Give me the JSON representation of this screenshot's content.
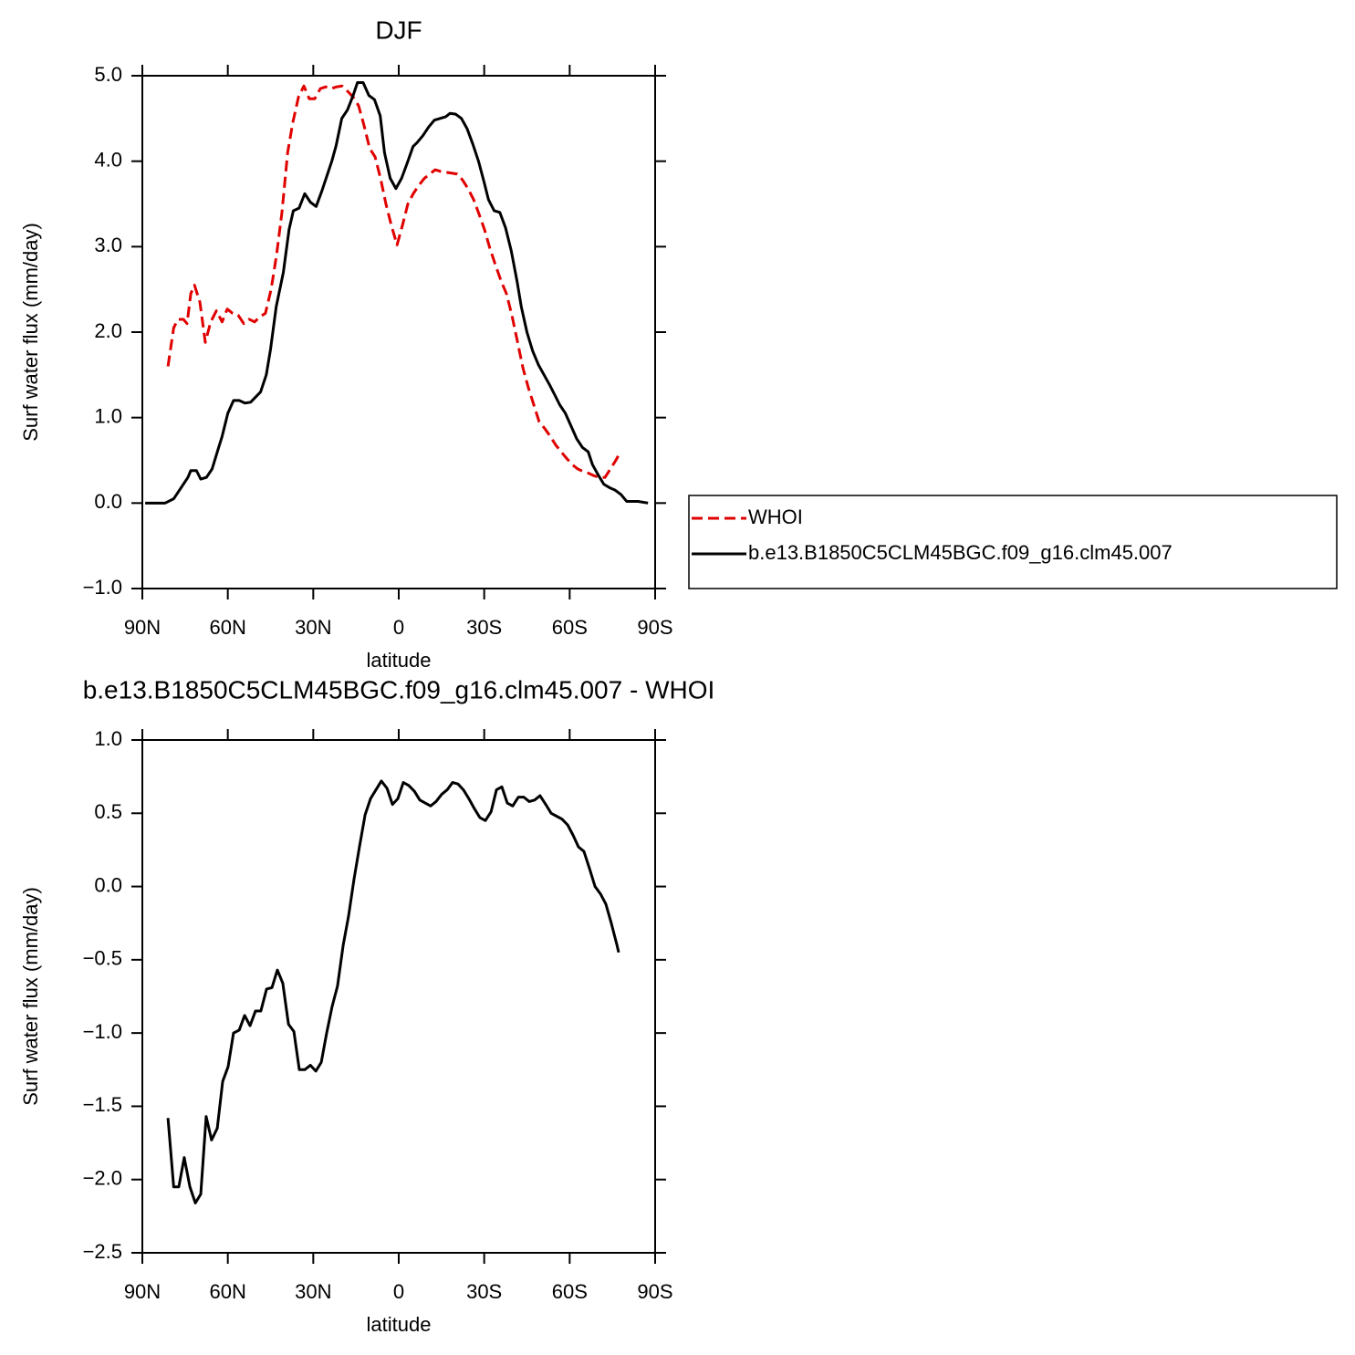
{
  "chart_data": [
    {
      "type": "line",
      "title": "DJF",
      "xlabel": "latitude",
      "ylabel": "Surf water flux (mm/day)",
      "xlim": [
        90,
        -90
      ],
      "xticks": [
        {
          "value": 90,
          "label": "90N"
        },
        {
          "value": 60,
          "label": "60N"
        },
        {
          "value": 30,
          "label": "30N"
        },
        0,
        {
          "value": -30,
          "label": "30S"
        },
        {
          "value": -60,
          "label": "60S"
        },
        {
          "value": -90,
          "label": "90S"
        }
      ],
      "ylim": [
        -1,
        5
      ],
      "yticks": [
        {
          "value": 5,
          "label": "5.0"
        },
        {
          "value": 4,
          "label": "4.0"
        },
        {
          "value": 3,
          "label": "3.0"
        },
        {
          "value": 2,
          "label": "2.0"
        },
        {
          "value": 1,
          "label": "1.0"
        },
        {
          "value": 0,
          "label": "0.0"
        },
        {
          "value": -1,
          "label": "−1.0"
        }
      ],
      "legend": "right",
      "series": [
        {
          "name": "WHOI",
          "color": "#e00000",
          "dash": "dashed",
          "x": [
            81,
            79,
            77.5,
            75.6,
            74.3,
            73,
            71.7,
            69.8,
            67.9,
            66,
            64,
            62,
            60.2,
            58.3,
            56.4,
            54.4,
            52.5,
            50.6,
            48.7,
            46.8,
            44.8,
            42.9,
            41,
            39,
            37.2,
            35.2,
            33.3,
            31.4,
            29.5,
            27.5,
            25.6,
            23.7,
            21.8,
            19.9,
            18,
            16,
            14.1,
            12.2,
            10.2,
            8.3,
            6.4,
            4.5,
            2.6,
            0.6,
            -1.3,
            -3.2,
            -5.1,
            -7.1,
            -9,
            -10.9,
            -12.8,
            -14.8,
            -16.7,
            -18.6,
            -20.5,
            -22.4,
            -24.3,
            -26.3,
            -28.2,
            -30.1,
            -32,
            -34,
            -35.9,
            -37.8,
            -39.7,
            -41.6,
            -43.6,
            -45.5,
            -47.4,
            -49.3,
            -51.3,
            -53.2,
            -55.1,
            -57,
            -59,
            -60.9,
            -62.8,
            -64.7,
            -66.6,
            -68.5,
            -70.4,
            -72.4,
            -74.3,
            -76.2,
            -77.5
          ],
          "values": [
            1.6,
            2.05,
            2.15,
            2.15,
            2.1,
            2.45,
            2.55,
            2.35,
            1.88,
            2.12,
            2.25,
            2.12,
            2.27,
            2.22,
            2.2,
            2.1,
            2.15,
            2.12,
            2.18,
            2.22,
            2.5,
            2.9,
            3.4,
            4.1,
            4.45,
            4.75,
            4.88,
            4.73,
            4.73,
            4.85,
            4.87,
            4.85,
            4.87,
            4.88,
            4.82,
            4.75,
            4.65,
            4.42,
            4.15,
            4.05,
            3.8,
            3.5,
            3.25,
            3.02,
            3.25,
            3.5,
            3.62,
            3.72,
            3.8,
            3.85,
            3.9,
            3.88,
            3.87,
            3.86,
            3.85,
            3.78,
            3.68,
            3.55,
            3.38,
            3.2,
            2.98,
            2.78,
            2.6,
            2.45,
            2.2,
            1.9,
            1.58,
            1.35,
            1.15,
            0.95,
            0.87,
            0.78,
            0.68,
            0.6,
            0.52,
            0.45,
            0.4,
            0.37,
            0.35,
            0.32,
            0.3,
            0.3,
            0.4,
            0.5,
            0.58
          ]
        },
        {
          "name": "b.e13.B1850C5CLM45BGC.f09_g16.clm45.007",
          "color": "#000000",
          "dash": "solid",
          "x": [
            89,
            82,
            79,
            77,
            74,
            73,
            71,
            69.5,
            67.5,
            65.5,
            63.5,
            62,
            60,
            58,
            56,
            54,
            52,
            48.5,
            46.5,
            45,
            43,
            40.5,
            38.5,
            37,
            35,
            33,
            31,
            29,
            27,
            25,
            23.5,
            22,
            20,
            18,
            16,
            14.5,
            12.5,
            10.5,
            8.5,
            6.5,
            5,
            3,
            1,
            -1,
            -3,
            -5,
            -6.5,
            -8.5,
            -10.5,
            -12.5,
            -14.5,
            -16.5,
            -18,
            -20,
            -22,
            -24,
            -26,
            -28,
            -30,
            -31.5,
            -33.5,
            -35.5,
            -37.5,
            -39.5,
            -41.5,
            -43,
            -45,
            -47,
            -49,
            -51,
            -53,
            -55,
            -56.5,
            -58.5,
            -60.5,
            -62.5,
            -64.5,
            -66.5,
            -68,
            -70,
            -72,
            -74,
            -76,
            -78,
            -80,
            -84,
            -87.5
          ],
          "values": [
            0,
            0,
            0.05,
            0.15,
            0.3,
            0.38,
            0.38,
            0.28,
            0.3,
            0.4,
            0.62,
            0.78,
            1.05,
            1.2,
            1.2,
            1.17,
            1.18,
            1.3,
            1.5,
            1.8,
            2.3,
            2.7,
            3.2,
            3.42,
            3.45,
            3.62,
            3.52,
            3.47,
            3.65,
            3.85,
            4.0,
            4.18,
            4.5,
            4.6,
            4.77,
            4.92,
            4.92,
            4.77,
            4.72,
            4.53,
            4.1,
            3.8,
            3.68,
            3.8,
            3.98,
            4.17,
            4.22,
            4.3,
            4.4,
            4.48,
            4.5,
            4.52,
            4.56,
            4.55,
            4.5,
            4.38,
            4.2,
            4.0,
            3.75,
            3.55,
            3.42,
            3.4,
            3.22,
            2.95,
            2.6,
            2.3,
            2.0,
            1.78,
            1.62,
            1.5,
            1.38,
            1.25,
            1.15,
            1.05,
            0.9,
            0.75,
            0.65,
            0.6,
            0.45,
            0.33,
            0.22,
            0.18,
            0.15,
            0.1,
            0.02,
            0.02,
            0
          ]
        }
      ]
    },
    {
      "type": "line",
      "title": "b.e13.B1850C5CLM45BGC.f09_g16.clm45.007 - WHOI",
      "xlabel": "latitude",
      "ylabel": "Surf water flux (mm/day)",
      "xlim": [
        90,
        -90
      ],
      "xticks": [
        {
          "value": 90,
          "label": "90N"
        },
        {
          "value": 60,
          "label": "60N"
        },
        {
          "value": 30,
          "label": "30N"
        },
        0,
        {
          "value": -30,
          "label": "30S"
        },
        {
          "value": -60,
          "label": "60S"
        },
        {
          "value": -90,
          "label": "90S"
        }
      ],
      "ylim": [
        -2.5,
        1
      ],
      "yticks": [
        {
          "value": 1,
          "label": "1.0"
        },
        0.5,
        {
          "value": 0,
          "label": "0.0"
        },
        {
          "value": -0.5,
          "label": "−0.5"
        },
        {
          "value": -1,
          "label": "−1.0"
        },
        {
          "value": -1.5,
          "label": "−1.5"
        },
        {
          "value": -2,
          "label": "−2.0"
        },
        {
          "value": -2.5,
          "label": "−2.5"
        }
      ],
      "series": [
        {
          "color": "#000000",
          "dash": "solid",
          "x": [
            81,
            79,
            77.2,
            75.3,
            73.3,
            71.4,
            69.5,
            67.6,
            65.7,
            63.7,
            61.8,
            59.9,
            58,
            56,
            54.1,
            52.2,
            50.3,
            48.4,
            46.4,
            44.5,
            42.6,
            40.7,
            38.7,
            36.8,
            34.9,
            33,
            31,
            29.1,
            27.2,
            25.3,
            23.4,
            21.5,
            19.5,
            17.6,
            15.7,
            13.8,
            11.8,
            9.9,
            8,
            6.1,
            4.1,
            2.2,
            0.3,
            -1.6,
            -3.5,
            -5.5,
            -7.4,
            -9.3,
            -11.2,
            -13.1,
            -15.1,
            -17,
            -18.9,
            -20.8,
            -22.7,
            -24.6,
            -26.6,
            -28.5,
            -30.4,
            -32.4,
            -34.3,
            -36.2,
            -38.1,
            -40,
            -42,
            -43.9,
            -45.8,
            -47.7,
            -49.6,
            -51.6,
            -53.5,
            -55.4,
            -57.3,
            -59.3,
            -61.2,
            -63.1,
            -65,
            -67,
            -68.9,
            -70.8,
            -72.7,
            -74.6,
            -76.6,
            -77.2
          ],
          "values": [
            -1.58,
            -2.05,
            -2.05,
            -1.85,
            -2.05,
            -2.16,
            -2.1,
            -1.57,
            -1.73,
            -1.65,
            -1.33,
            -1.23,
            -1.0,
            -0.98,
            -0.88,
            -0.95,
            -0.85,
            -0.85,
            -0.7,
            -0.69,
            -0.57,
            -0.66,
            -0.94,
            -0.99,
            -1.25,
            -1.25,
            -1.22,
            -1.26,
            -1.2,
            -1.0,
            -0.82,
            -0.68,
            -0.4,
            -0.2,
            0.05,
            0.27,
            0.49,
            0.6,
            0.66,
            0.72,
            0.67,
            0.56,
            0.6,
            0.71,
            0.69,
            0.65,
            0.59,
            0.57,
            0.55,
            0.58,
            0.63,
            0.66,
            0.71,
            0.7,
            0.66,
            0.6,
            0.53,
            0.47,
            0.45,
            0.51,
            0.66,
            0.68,
            0.57,
            0.55,
            0.61,
            0.61,
            0.58,
            0.59,
            0.62,
            0.56,
            0.5,
            0.48,
            0.46,
            0.42,
            0.35,
            0.27,
            0.24,
            0.12,
            0.0,
            -0.05,
            -0.12,
            -0.25,
            -0.4,
            -0.45
          ]
        }
      ]
    }
  ]
}
